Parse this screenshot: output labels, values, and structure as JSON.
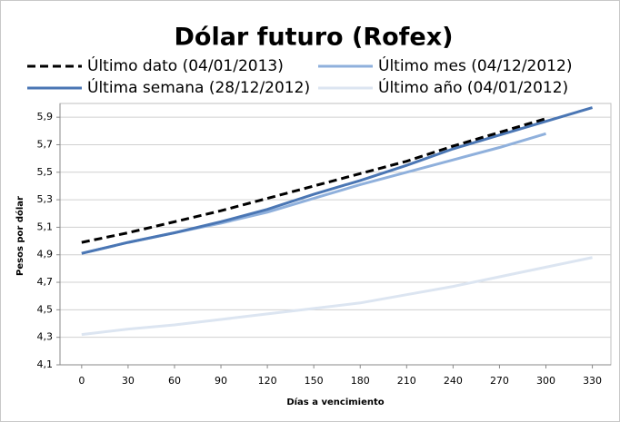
{
  "chart_data": {
    "type": "line",
    "title": "Dólar futuro (Rofex)",
    "x_label": "Días a vencimiento",
    "y_label": "Pesos por dólar",
    "x": [
      0,
      30,
      60,
      90,
      120,
      150,
      180,
      210,
      240,
      270,
      300,
      330
    ],
    "series": [
      {
        "name": "Último dato (04/01/2013)",
        "color": "#000000",
        "dash": true,
        "values": [
          4.99,
          5.06,
          5.14,
          5.22,
          5.31,
          5.4,
          5.49,
          5.58,
          5.69,
          5.79,
          5.89,
          null
        ]
      },
      {
        "name": "Última semana (28/12/2012)",
        "color": "#4a76b4",
        "values": [
          4.91,
          4.99,
          5.06,
          5.14,
          5.23,
          5.34,
          5.44,
          5.55,
          5.67,
          5.77,
          5.87,
          5.97
        ]
      },
      {
        "name": "Último mes (04/12/2012)",
        "color": "#8fb0dc",
        "values": [
          4.91,
          4.99,
          5.06,
          5.13,
          5.21,
          5.31,
          5.41,
          5.5,
          5.59,
          5.68,
          5.78,
          null
        ]
      },
      {
        "name": "Último año (04/01/2012)",
        "color": "#dce5f1",
        "values": [
          4.32,
          4.36,
          4.39,
          4.43,
          4.47,
          4.51,
          4.55,
          4.61,
          4.67,
          4.74,
          4.81,
          4.88
        ]
      }
    ],
    "xlim": [
      -14,
      342
    ],
    "xticks": [
      0,
      30,
      60,
      90,
      120,
      150,
      180,
      210,
      240,
      270,
      300,
      330
    ],
    "ylim": [
      4.1,
      6.0
    ],
    "yticks": [
      {
        "value": 4.1,
        "label": "4,1"
      },
      {
        "value": 4.3,
        "label": "4,3"
      },
      {
        "value": 4.5,
        "label": "4,5"
      },
      {
        "value": 4.7,
        "label": "4,7"
      },
      {
        "value": 4.9,
        "label": "4,9"
      },
      {
        "value": 5.1,
        "label": "5,1"
      },
      {
        "value": 5.3,
        "label": "5,3"
      },
      {
        "value": 5.5,
        "label": "5,5"
      },
      {
        "value": 5.7,
        "label": "5,7"
      },
      {
        "value": 5.9,
        "label": "5,9"
      }
    ],
    "grid": true,
    "legend": "top"
  }
}
